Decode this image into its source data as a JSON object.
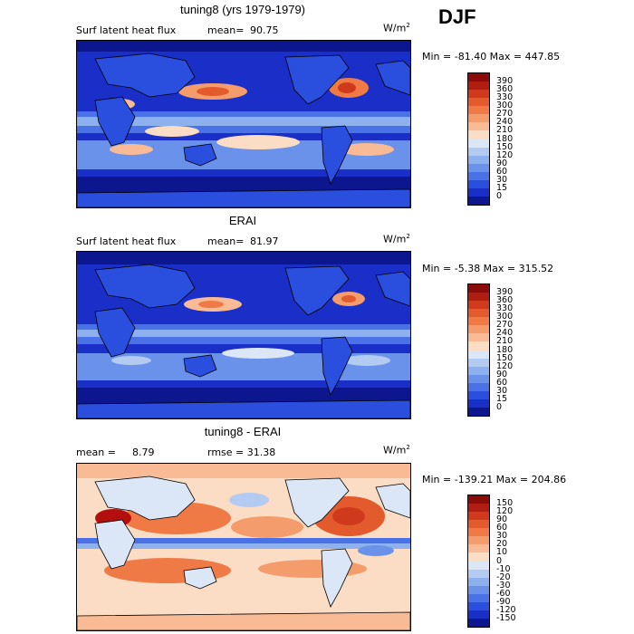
{
  "season": "DJF",
  "panels": [
    {
      "title": "tuning8 (yrs 1979-1979)",
      "var_label": "Surf latent heat flux",
      "stat_label": "mean=",
      "stat_value": "90.75",
      "units": "W/m",
      "units_exp": "2",
      "minmax": "Min = -81.40 Max = 447.85",
      "colorbar": {
        "levels": [
          "390",
          "360",
          "330",
          "300",
          "270",
          "240",
          "210",
          "180",
          "150",
          "120",
          "90",
          "60",
          "30",
          "15",
          "0"
        ],
        "colors": [
          "#8b0a0a",
          "#b01e12",
          "#cf3a1c",
          "#e35a2d",
          "#f07a45",
          "#f59c6c",
          "#f8bb95",
          "#fbdcc5",
          "#dbe6f6",
          "#b3cbf0",
          "#8db0ee",
          "#6a92ea",
          "#4a72e6",
          "#2a4ede",
          "#1a2ec8",
          "#0c178f"
        ]
      }
    },
    {
      "title": "ERAI",
      "var_label": "Surf latent heat flux",
      "stat_label": "mean=",
      "stat_value": "81.97",
      "units": "W/m",
      "units_exp": "2",
      "minmax": "Min = -5.38 Max = 315.52",
      "colorbar": {
        "levels": [
          "390",
          "360",
          "330",
          "300",
          "270",
          "240",
          "210",
          "180",
          "150",
          "120",
          "90",
          "60",
          "30",
          "15",
          "0"
        ],
        "colors": [
          "#8b0a0a",
          "#b01e12",
          "#cf3a1c",
          "#e35a2d",
          "#f07a45",
          "#f59c6c",
          "#f8bb95",
          "#fbdcc5",
          "#dbe6f6",
          "#b3cbf0",
          "#8db0ee",
          "#6a92ea",
          "#4a72e6",
          "#2a4ede",
          "#1a2ec8",
          "#0c178f"
        ]
      }
    },
    {
      "title": "tuning8 - ERAI",
      "var_label": "mean =",
      "stat_label": "8.79",
      "stat_value": "rmse =  31.38",
      "units": "W/m",
      "units_exp": "2",
      "minmax": "Min = -139.21 Max = 204.86",
      "colorbar": {
        "levels": [
          "150",
          "120",
          "90",
          "60",
          "30",
          "20",
          "10",
          "0",
          "-10",
          "-20",
          "-30",
          "-60",
          "-90",
          "-120",
          "-150"
        ],
        "colors": [
          "#8b0a0a",
          "#b01e12",
          "#cf3a1c",
          "#e35a2d",
          "#f07a45",
          "#f59c6c",
          "#f8bb95",
          "#fbdcc5",
          "#dbe6f6",
          "#b3cbf0",
          "#8db0ee",
          "#6a92ea",
          "#4a72e6",
          "#2a4ede",
          "#1a2ec8",
          "#0c178f"
        ]
      }
    }
  ],
  "chart_data": [
    {
      "type": "heatmap",
      "title": "tuning8 (yrs 1979-1979)",
      "variable": "Surf latent heat flux",
      "units": "W/m^2",
      "mean": 90.75,
      "min": -81.4,
      "max": 447.85,
      "contour_levels": [
        0,
        15,
        30,
        60,
        90,
        120,
        150,
        180,
        210,
        240,
        270,
        300,
        330,
        360,
        390
      ]
    },
    {
      "type": "heatmap",
      "title": "ERAI",
      "variable": "Surf latent heat flux",
      "units": "W/m^2",
      "mean": 81.97,
      "min": -5.38,
      "max": 315.52,
      "contour_levels": [
        0,
        15,
        30,
        60,
        90,
        120,
        150,
        180,
        210,
        240,
        270,
        300,
        330,
        360,
        390
      ]
    },
    {
      "type": "heatmap",
      "title": "tuning8 - ERAI",
      "units": "W/m^2",
      "mean": 8.79,
      "rmse": 31.38,
      "min": -139.21,
      "max": 204.86,
      "contour_levels": [
        -150,
        -120,
        -90,
        -60,
        -30,
        -20,
        -10,
        0,
        10,
        20,
        30,
        60,
        90,
        120,
        150
      ]
    }
  ]
}
